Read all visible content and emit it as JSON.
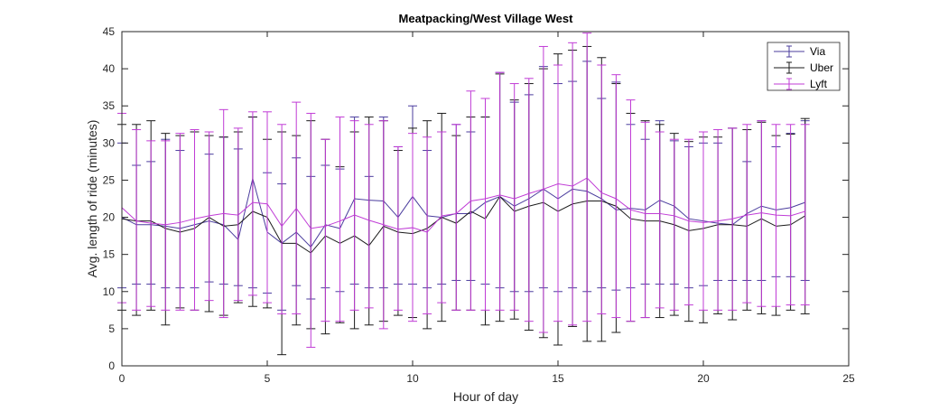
{
  "chart_data": {
    "type": "line",
    "title": "Meatpacking/West Village West",
    "xlabel": "Hour of day",
    "ylabel": "Avg. length of ride (minutes)",
    "xlim": [
      0,
      25
    ],
    "ylim": [
      0,
      45
    ],
    "xticks": [
      "0",
      "5",
      "10",
      "15",
      "20",
      "25"
    ],
    "yticks": [
      "0",
      "5",
      "10",
      "15",
      "20",
      "25",
      "30",
      "35",
      "40",
      "45"
    ],
    "grid": false,
    "legend_position": "top-right",
    "x": [
      0,
      0.5,
      1,
      1.5,
      2,
      2.5,
      3,
      3.5,
      4,
      4.5,
      5,
      5.5,
      6,
      6.5,
      7,
      7.5,
      8,
      8.5,
      9,
      9.5,
      10,
      10.5,
      11,
      11.5,
      12,
      12.5,
      13,
      13.5,
      14,
      14.5,
      15,
      15.5,
      16,
      16.5,
      17,
      17.5,
      18,
      18.5,
      19,
      19.5,
      20,
      20.5,
      21,
      21.5,
      22,
      22.5,
      23,
      23.5
    ],
    "series": [
      {
        "name": "Via",
        "color": "#4b3d9e",
        "values": [
          20,
          19,
          19,
          18.8,
          18.5,
          19,
          19.5,
          19,
          17,
          25.2,
          18,
          16.5,
          18,
          16,
          19,
          18.5,
          22.5,
          22.3,
          22.2,
          20,
          22.8,
          20.2,
          20,
          20.5,
          20.5,
          22,
          22.8,
          21.5,
          22.5,
          23.8,
          22.5,
          23.8,
          23.5,
          22.5,
          21,
          21.2,
          21,
          22.3,
          21.5,
          19.8,
          19.5,
          19.2,
          19,
          20.5,
          21.5,
          21,
          21.3,
          22
        ],
        "err_low": [
          10.5,
          11,
          11,
          10.5,
          10.5,
          10.5,
          11.3,
          11,
          10.8,
          10.5,
          9.8,
          7.5,
          10.8,
          9,
          10.5,
          10,
          11,
          10.5,
          10.5,
          11,
          11,
          10.5,
          11,
          11.5,
          11.5,
          11,
          10.5,
          10,
          10,
          10.5,
          10,
          10.5,
          10,
          10.5,
          10.2,
          10.5,
          11,
          11,
          11,
          10.5,
          10.8,
          11.5,
          11.5,
          11.5,
          11.5,
          12,
          12,
          11.5
        ],
        "err_high": [
          30,
          27,
          27.5,
          30.5,
          29,
          31.5,
          28.5,
          30.8,
          29.2,
          33.5,
          26,
          24.5,
          28,
          25.5,
          27,
          26.5,
          33.5,
          25.5,
          33.5,
          29.5,
          35,
          29,
          31.5,
          32.5,
          31.5,
          33.5,
          39.5,
          35.5,
          36.5,
          40.3,
          38,
          38.3,
          41,
          36,
          38.2,
          32.5,
          30.5,
          33,
          30.3,
          29.5,
          30,
          30,
          32,
          27.5,
          33,
          29.5,
          31.3,
          33
        ]
      },
      {
        "name": "Uber",
        "color": "#1a1a1a",
        "values": [
          19.8,
          19.5,
          19.5,
          18.5,
          18,
          18.5,
          20,
          18.8,
          19,
          20.8,
          20,
          16.5,
          16.5,
          15.2,
          17.5,
          16.5,
          17.5,
          16.2,
          18.8,
          18,
          17.8,
          18.5,
          20,
          19.2,
          20.8,
          19.8,
          22.8,
          20.8,
          21.5,
          22,
          20.8,
          21.8,
          22.2,
          22.2,
          21.5,
          19.8,
          19.5,
          19.5,
          19,
          18.2,
          18.5,
          19,
          19,
          18.8,
          19.8,
          18.8,
          19,
          20.2
        ],
        "err_low": [
          7.5,
          6.8,
          7.5,
          5.5,
          7.8,
          7.5,
          7.3,
          6.8,
          8.5,
          8,
          7.8,
          1.5,
          5.5,
          5,
          4.3,
          5.8,
          5,
          5.5,
          6,
          6.8,
          6.5,
          5,
          6,
          7.5,
          7.5,
          5.5,
          6,
          6.3,
          4.8,
          3.8,
          2.8,
          5.3,
          3.3,
          3.3,
          4.5,
          6,
          6.5,
          6.5,
          6.8,
          6,
          5.8,
          7,
          6.2,
          7.5,
          7,
          6.8,
          7.5,
          7
        ],
        "err_high": [
          32.5,
          32.5,
          33,
          31.3,
          31,
          31.5,
          31,
          30.8,
          31.5,
          33.5,
          30.5,
          31.5,
          31,
          33,
          30.5,
          26.8,
          31.5,
          33.5,
          33,
          29,
          32,
          33,
          34,
          31,
          33.5,
          33.5,
          39.3,
          35.8,
          38,
          40,
          42,
          42.5,
          43,
          41.5,
          38,
          34,
          33,
          32.5,
          31.3,
          30.2,
          30.8,
          30.8,
          32,
          31.8,
          32.8,
          31,
          31.2,
          33.3
        ]
      },
      {
        "name": "Lyft",
        "color": "#c03cd6",
        "values": [
          21.3,
          19.5,
          19.2,
          19,
          19.3,
          19.8,
          20.2,
          20.5,
          20.3,
          22,
          21.8,
          18.8,
          21.2,
          18.5,
          18.8,
          19.5,
          20.3,
          19.6,
          19,
          18.4,
          18.6,
          18,
          20.2,
          20.5,
          22.2,
          22.5,
          23,
          22.5,
          23.2,
          23.8,
          24.5,
          24.2,
          25.3,
          23.3,
          22.5,
          21,
          20.5,
          20.5,
          20.2,
          19.5,
          19.3,
          19.5,
          19.8,
          20.3,
          20.6,
          20.3,
          20.2,
          20.8
        ],
        "err_low": [
          8.5,
          7.5,
          8,
          7.5,
          7.5,
          7.5,
          8.8,
          6.5,
          8.8,
          9.5,
          8.5,
          7,
          7,
          2.5,
          6,
          6,
          7.5,
          7.8,
          5,
          7.5,
          6,
          7,
          8.5,
          7.5,
          7.5,
          7.5,
          7.5,
          7.5,
          6,
          4.5,
          6,
          5.5,
          6,
          7,
          6.5,
          6,
          6.5,
          7.8,
          7.5,
          8.2,
          7.5,
          7.5,
          7.5,
          8.5,
          8,
          8,
          8.2,
          8.2
        ],
        "err_high": [
          34,
          31.8,
          30.3,
          30.3,
          31.3,
          31.8,
          31.5,
          34.5,
          32,
          34.2,
          34.2,
          32.5,
          35.5,
          34,
          30.5,
          33.5,
          33,
          32.5,
          33,
          29.5,
          31.3,
          30.8,
          31.5,
          32.5,
          37,
          36,
          39.5,
          38,
          38.7,
          43,
          40.5,
          43.5,
          44.8,
          40.5,
          39.2,
          35.8,
          32.8,
          31.5,
          30.5,
          30.5,
          31.5,
          31.8,
          32,
          32.5,
          33,
          32.5,
          32.5,
          32.5
        ]
      }
    ]
  }
}
